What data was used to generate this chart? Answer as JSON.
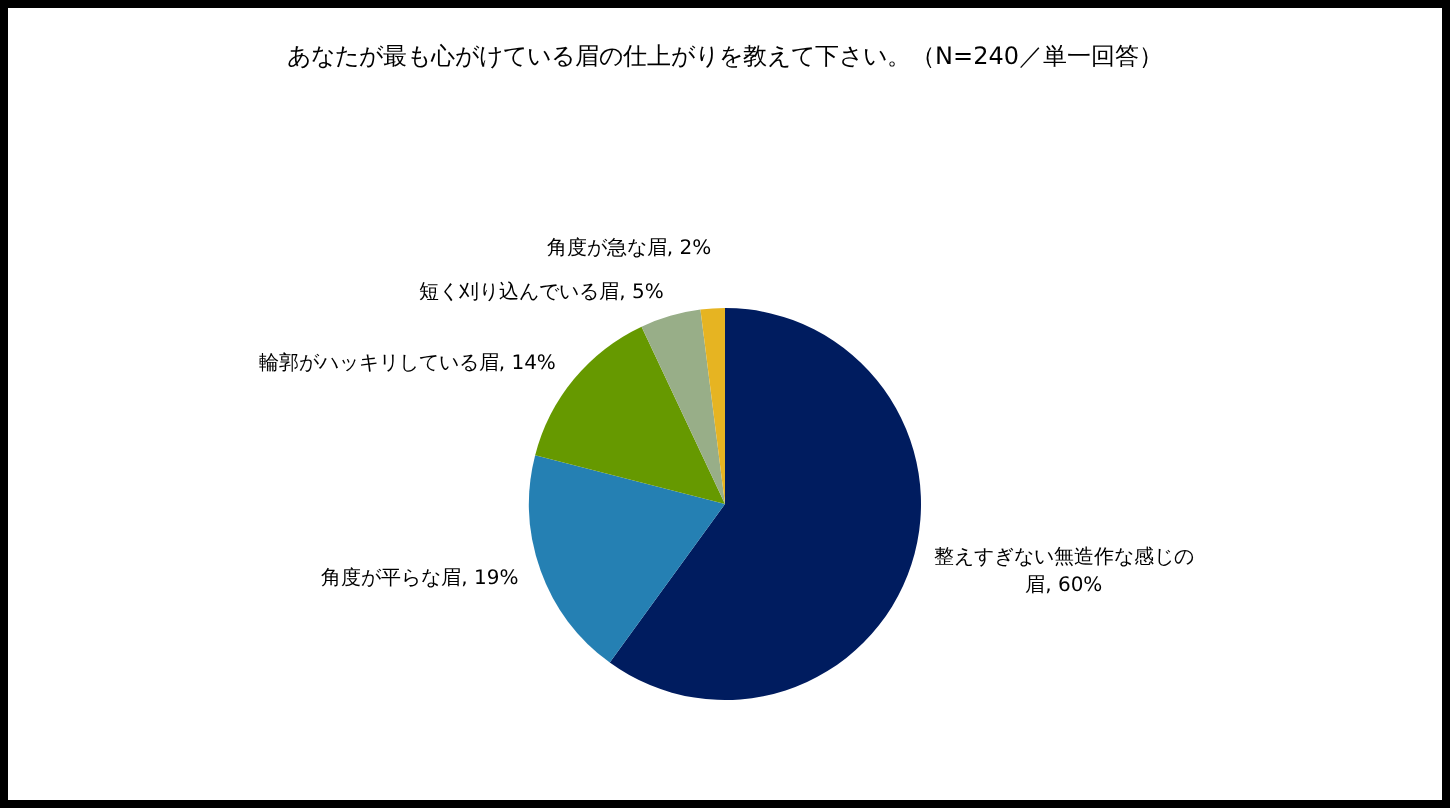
{
  "chart_data": {
    "type": "pie",
    "title": "あなたが最も心がけている眉の仕上がりを教えて下さい。（N=240／単一回答）",
    "categories": [
      "整えすぎない無造作な感じの眉",
      "角度が平らな眉",
      "輪郭がハッキリしている眉",
      "短く刈り込んでいる眉",
      "角度が急な眉"
    ],
    "values": [
      60,
      19,
      14,
      5,
      2
    ],
    "value_labels": [
      "60%",
      "19%",
      "14%",
      "5%",
      "2%"
    ],
    "colors": [
      "#001c5f",
      "#2580b3",
      "#669900",
      "#98ae88",
      "#e6b422"
    ],
    "legend": false
  }
}
